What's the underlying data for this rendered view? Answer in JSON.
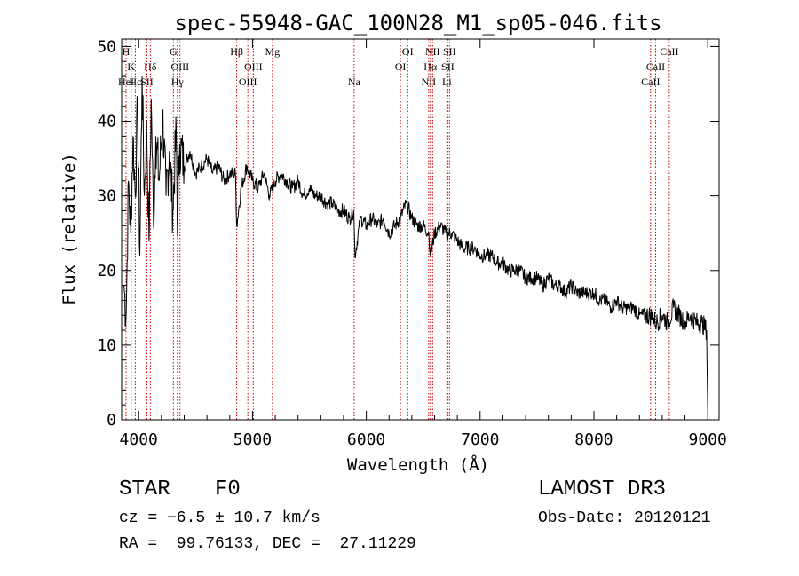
{
  "chart_data": {
    "type": "line",
    "title": "spec-55948-GAC_100N28_M1_sp05-046.fits",
    "xlabel": "Wavelength (Å)",
    "ylabel": "Flux (relative)",
    "xlim": [
      3850,
      9100
    ],
    "ylim": [
      0,
      51
    ],
    "xticks": [
      4000,
      5000,
      6000,
      7000,
      8000,
      9000
    ],
    "xtick_labels": [
      "4000",
      "5000",
      "6000",
      "7000",
      "8000",
      "9000"
    ],
    "yticks": [
      0,
      10,
      20,
      30,
      40,
      50
    ],
    "ytick_labels": [
      "0",
      "10",
      "20",
      "30",
      "40",
      "50"
    ],
    "grid": false,
    "series": [
      {
        "name": "spectrum",
        "x": [
          3870,
          3890,
          3910,
          3930,
          3950,
          3970,
          3990,
          4010,
          4030,
          4050,
          4070,
          4090,
          4110,
          4130,
          4150,
          4180,
          4210,
          4240,
          4270,
          4300,
          4330,
          4340,
          4360,
          4400,
          4450,
          4500,
          4550,
          4600,
          4650,
          4700,
          4750,
          4800,
          4850,
          4861,
          4900,
          4950,
          5000,
          5050,
          5100,
          5150,
          5200,
          5250,
          5300,
          5350,
          5400,
          5450,
          5500,
          5550,
          5600,
          5650,
          5700,
          5750,
          5800,
          5850,
          5890,
          5900,
          5950,
          6000,
          6050,
          6100,
          6150,
          6200,
          6250,
          6300,
          6350,
          6400,
          6450,
          6500,
          6550,
          6563,
          6600,
          6650,
          6700,
          6750,
          6800,
          6850,
          6900,
          6950,
          7000,
          7050,
          7100,
          7150,
          7200,
          7250,
          7300,
          7350,
          7400,
          7450,
          7500,
          7550,
          7600,
          7650,
          7700,
          7750,
          7800,
          7850,
          7900,
          7950,
          8000,
          8050,
          8100,
          8150,
          8200,
          8250,
          8300,
          8350,
          8400,
          8450,
          8500,
          8550,
          8600,
          8650,
          8700,
          8750,
          8800,
          8850,
          8900,
          8950,
          8990,
          9000
        ],
        "y": [
          18,
          14,
          32,
          25,
          38,
          30,
          42,
          22,
          46,
          30,
          40,
          24,
          43,
          26,
          38,
          32,
          41,
          30,
          36,
          28,
          39,
          25,
          37,
          34,
          36,
          33,
          34,
          35,
          33,
          34,
          32,
          33,
          33,
          26,
          31,
          34,
          32,
          31,
          33,
          30,
          32,
          33,
          32,
          31,
          32,
          30,
          31,
          30,
          30,
          29,
          29,
          28,
          28,
          27,
          28,
          22,
          27,
          26,
          27,
          26,
          27,
          25,
          26,
          27,
          29,
          27,
          26,
          26,
          25,
          22,
          25,
          26,
          25,
          25,
          24,
          23,
          23,
          23,
          22,
          22,
          22,
          21,
          21,
          20,
          20,
          20,
          19,
          19,
          19,
          18,
          19,
          18,
          18,
          17,
          18,
          17,
          17,
          17,
          17,
          16,
          16,
          15,
          16,
          15,
          15,
          15,
          14,
          14,
          14,
          13,
          14,
          13,
          15,
          14,
          13,
          14,
          13,
          13,
          12,
          1
        ]
      }
    ],
    "lines": [
      {
        "wavelength": 3889,
        "label": "H",
        "row": 0
      },
      {
        "wavelength": 3934,
        "label": "K",
        "row": 1
      },
      {
        "wavelength": 3970,
        "label": "Hc",
        "row": 2
      },
      {
        "wavelength": 3889,
        "label": "HeI",
        "row": 2
      },
      {
        "wavelength": 4102,
        "label": "Hδ",
        "row": 1
      },
      {
        "wavelength": 4072,
        "label": "SII",
        "row": 2
      },
      {
        "wavelength": 4305,
        "label": "G",
        "row": 0
      },
      {
        "wavelength": 4340,
        "label": "Hγ",
        "row": 2
      },
      {
        "wavelength": 4363,
        "label": "OIII",
        "row": 1
      },
      {
        "wavelength": 4861,
        "label": "Hβ",
        "row": 0
      },
      {
        "wavelength": 4959,
        "label": "OIII",
        "row": 2
      },
      {
        "wavelength": 5007,
        "label": "OIII",
        "row": 1
      },
      {
        "wavelength": 5175,
        "label": "Mg",
        "row": 0
      },
      {
        "wavelength": 5893,
        "label": "Na",
        "row": 2
      },
      {
        "wavelength": 6300,
        "label": "OI",
        "row": 1
      },
      {
        "wavelength": 6364,
        "label": "OI",
        "row": 0
      },
      {
        "wavelength": 6548,
        "label": "NII",
        "row": 2
      },
      {
        "wavelength": 6563,
        "label": "Hα",
        "row": 1
      },
      {
        "wavelength": 6583,
        "label": "NII",
        "row": 0
      },
      {
        "wavelength": 6708,
        "label": "Li",
        "row": 2
      },
      {
        "wavelength": 6716,
        "label": "SII",
        "row": 1
      },
      {
        "wavelength": 6731,
        "label": "SII",
        "row": 0
      },
      {
        "wavelength": 8498,
        "label": "CaII",
        "row": 2
      },
      {
        "wavelength": 8542,
        "label": "CaII",
        "row": 1
      },
      {
        "wavelength": 8662,
        "label": "CaII",
        "row": 0
      }
    ]
  },
  "footer": {
    "class_label": "STAR",
    "subclass": "F0",
    "survey": "LAMOST DR3",
    "cz": "cz = −6.5 ± 10.7 km/s",
    "obs_date": "Obs-Date: 20120121",
    "coords": "RA =  99.76133, DEC =  27.11229"
  },
  "colors": {
    "line_marker": "#cc0000",
    "axis": "#000000",
    "spectrum": "#000000"
  }
}
